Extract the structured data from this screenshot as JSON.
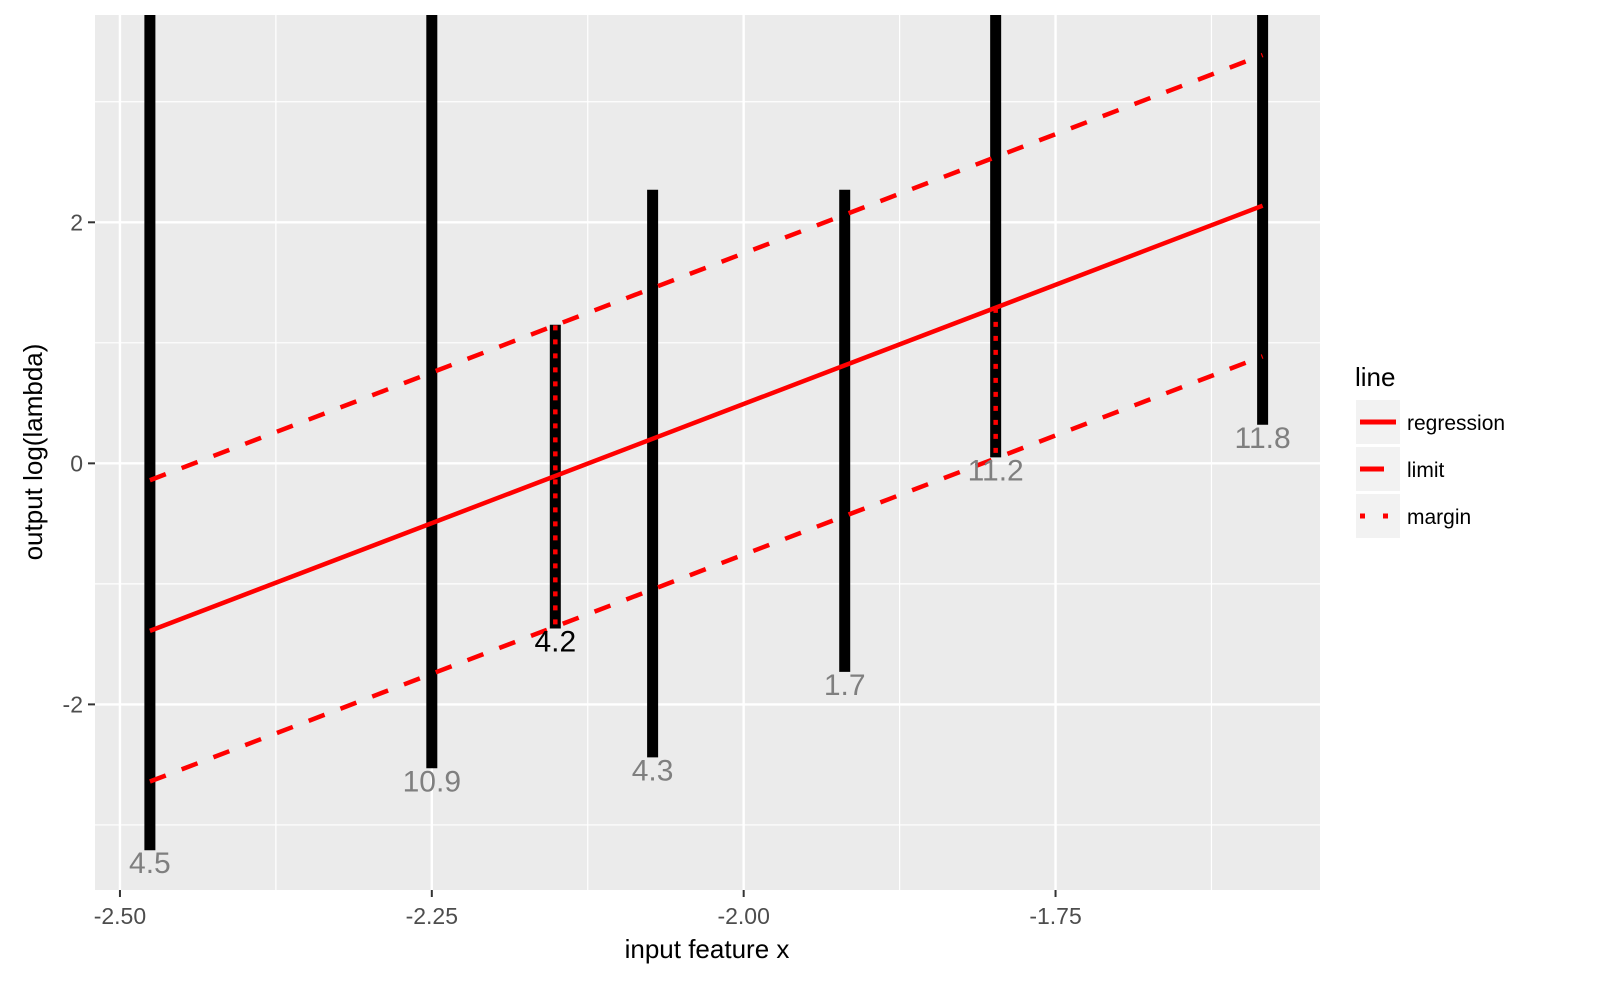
{
  "chart_data": {
    "type": "line",
    "xlabel": "input feature x",
    "ylabel": "output log(lambda)",
    "xlim": [
      -2.52,
      -1.538
    ],
    "ylim": [
      -3.54,
      3.72
    ],
    "x_ticks": [
      -2.5,
      -2.25,
      -2.0,
      -1.75
    ],
    "x_tick_labels": [
      "-2.50",
      "-2.25",
      "-2.00",
      "-1.75"
    ],
    "y_ticks": [
      -2,
      0,
      2
    ],
    "y_tick_labels": [
      "-2",
      "0",
      "2"
    ],
    "grid": true,
    "regression": {
      "slope": 3.955,
      "x0": -2.476,
      "y0": -1.39,
      "x_range": [
        -2.476,
        -1.584
      ]
    },
    "limit_offset": 1.25,
    "segments": [
      {
        "x": -2.476,
        "ymin": -3.21,
        "ymax": 4.0,
        "label": "4.5",
        "highlight": false
      },
      {
        "x": -2.25,
        "ymin": -2.53,
        "ymax": 4.0,
        "label": "10.9",
        "highlight": false
      },
      {
        "x": -2.151,
        "ymin": -1.37,
        "ymax": 1.15,
        "label": "4.2",
        "highlight": true
      },
      {
        "x": -2.073,
        "ymin": -2.44,
        "ymax": 2.27,
        "label": "4.3",
        "highlight": false
      },
      {
        "x": -1.919,
        "ymin": -1.73,
        "ymax": 2.27,
        "label": "1.7",
        "highlight": false
      },
      {
        "x": -1.798,
        "ymin": 0.05,
        "ymax": 4.0,
        "label": "11.2",
        "highlight": false
      },
      {
        "x": -1.584,
        "ymin": 0.32,
        "ymax": 4.0,
        "label": "11.8",
        "highlight": false
      }
    ],
    "margins": [
      {
        "x": -2.151,
        "ymin": -1.355,
        "ymax": 1.145
      },
      {
        "x": -1.798,
        "ymin": 0.05,
        "ymax": 1.29
      }
    ],
    "legend": {
      "title": "line",
      "placement": "right",
      "entries": [
        {
          "label": "regression",
          "style": "solid"
        },
        {
          "label": "limit",
          "style": "dashed"
        },
        {
          "label": "margin",
          "style": "dotted"
        }
      ]
    },
    "colors": {
      "line": "#ff0000",
      "segment": "#000000",
      "panel": "#ebebeb",
      "label": "#7f7f7f",
      "label_highlight": "#000000"
    }
  }
}
